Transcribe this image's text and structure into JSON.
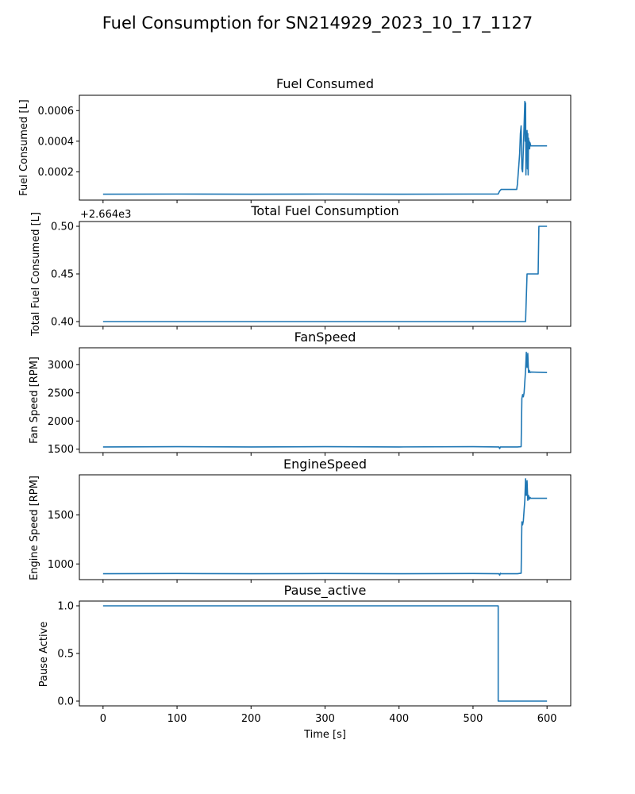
{
  "figure": {
    "title": "Fuel Consumption for SN214929_2023_10_17_1127",
    "xlabel": "Time [s]"
  },
  "chart_data": [
    {
      "type": "line",
      "title": "Fuel Consumed",
      "xlabel": "",
      "ylabel": "Fuel Consumed [L]",
      "xlim": [
        -32,
        632
      ],
      "ylim": [
        1.55e-05,
        0.0007
      ],
      "yticks": [
        0.0002,
        0.0004,
        0.0006
      ],
      "ytick_labels": [
        "0.0002",
        "0.0004",
        "0.0006"
      ],
      "xticks": [
        0,
        100,
        200,
        300,
        400,
        500,
        600
      ],
      "show_xtick_labels": false,
      "offset_text": "",
      "color": "#1f77b4",
      "series": [
        {
          "x": [
            0,
            100,
            200,
            300,
            400,
            500,
            534,
            536,
            538,
            559,
            560,
            562,
            563,
            564,
            565,
            566,
            567,
            568,
            569,
            570,
            570.5,
            571,
            571.5,
            572,
            572.5,
            573,
            573.5,
            574,
            574.5,
            575,
            575.5,
            576,
            576.5,
            577,
            578,
            600
          ],
          "y": [
            5.4e-05,
            5.5e-05,
            5.4e-05,
            5.5e-05,
            5.4e-05,
            5.5e-05,
            5.5e-05,
            7.5e-05,
            8.5e-05,
            8.5e-05,
            0.00012,
            0.00025,
            0.00032,
            0.00045,
            0.0005,
            0.00022,
            0.0002,
            0.00035,
            0.0005,
            0.00066,
            0.0004,
            0.00065,
            0.00018,
            0.00046,
            0.00032,
            0.00047,
            0.00022,
            0.00045,
            0.00018,
            0.00042,
            0.00036,
            0.0004,
            0.00035,
            0.00039,
            0.00037,
            0.00037
          ]
        }
      ]
    },
    {
      "type": "line",
      "title": "Total Fuel Consumption",
      "xlabel": "",
      "ylabel": "Total Fuel Consumed [L]",
      "xlim": [
        -32,
        632
      ],
      "ylim": [
        0.395,
        0.505
      ],
      "yticks": [
        0.4,
        0.45,
        0.5
      ],
      "ytick_labels": [
        "0.40",
        "0.45",
        "0.50"
      ],
      "xticks": [
        0,
        100,
        200,
        300,
        400,
        500,
        600
      ],
      "show_xtick_labels": false,
      "offset_text": "+2.664e3",
      "color": "#1f77b4",
      "series": [
        {
          "x": [
            0,
            571,
            573,
            588,
            589,
            600
          ],
          "y": [
            0.4,
            0.4,
            0.45,
            0.45,
            0.5,
            0.5
          ]
        }
      ]
    },
    {
      "type": "line",
      "title": "FanSpeed",
      "xlabel": "",
      "ylabel": "Fan Speed [RPM]",
      "xlim": [
        -32,
        632
      ],
      "ylim": [
        1440,
        3300
      ],
      "yticks": [
        1500,
        2000,
        2500,
        3000
      ],
      "ytick_labels": [
        "1500",
        "2000",
        "2500",
        "3000"
      ],
      "xticks": [
        0,
        100,
        200,
        300,
        400,
        500,
        600
      ],
      "show_xtick_labels": false,
      "offset_text": "",
      "color": "#1f77b4",
      "series": [
        {
          "x": [
            0,
            100,
            200,
            300,
            400,
            500,
            535,
            536,
            537,
            560,
            565,
            566,
            567,
            568,
            569,
            570,
            571,
            572,
            573,
            574,
            575,
            576,
            577,
            578,
            600
          ],
          "y": [
            1540,
            1545,
            1540,
            1545,
            1540,
            1545,
            1540,
            1510,
            1540,
            1540,
            1545,
            2400,
            2470,
            2430,
            2500,
            2700,
            2900,
            3220,
            2950,
            3200,
            2860,
            2900,
            2860,
            2870,
            2860
          ]
        }
      ]
    },
    {
      "type": "line",
      "title": "EngineSpeed",
      "xlabel": "",
      "ylabel": "Engine Speed [RPM]",
      "xlim": [
        -32,
        632
      ],
      "ylim": [
        840,
        1910
      ],
      "yticks": [
        1000,
        1500
      ],
      "ytick_labels": [
        "1000",
        "1500"
      ],
      "xticks": [
        0,
        100,
        200,
        300,
        400,
        500,
        600
      ],
      "show_xtick_labels": false,
      "offset_text": "",
      "color": "#1f77b4",
      "series": [
        {
          "x": [
            0,
            100,
            200,
            300,
            400,
            500,
            535,
            536,
            537,
            538,
            560,
            565,
            566,
            567,
            568,
            569,
            570,
            571,
            572,
            573,
            574,
            575,
            576,
            577,
            578,
            600
          ],
          "y": [
            900,
            902,
            900,
            902,
            900,
            902,
            900,
            885,
            905,
            900,
            900,
            905,
            1430,
            1400,
            1440,
            1550,
            1650,
            1870,
            1700,
            1850,
            1650,
            1700,
            1660,
            1680,
            1670,
            1670
          ]
        }
      ]
    },
    {
      "type": "line",
      "title": "Pause_active",
      "xlabel": "Time [s]",
      "ylabel": "Pause Active",
      "xlim": [
        -32,
        632
      ],
      "ylim": [
        -0.05,
        1.05
      ],
      "yticks": [
        0.0,
        0.5,
        1.0
      ],
      "ytick_labels": [
        "0.0",
        "0.5",
        "1.0"
      ],
      "xticks": [
        0,
        100,
        200,
        300,
        400,
        500,
        600
      ],
      "show_xtick_labels": true,
      "offset_text": "",
      "color": "#1f77b4",
      "series": [
        {
          "x": [
            0,
            534,
            534,
            600
          ],
          "y": [
            1.0,
            1.0,
            0.0,
            0.0
          ]
        }
      ]
    }
  ]
}
